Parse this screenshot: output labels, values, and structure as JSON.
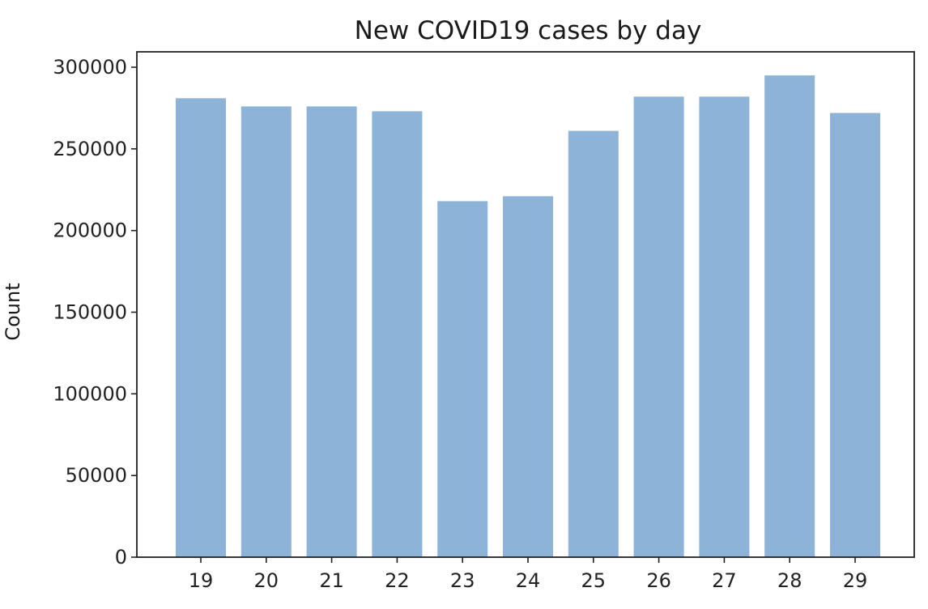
{
  "chart_data": {
    "type": "bar",
    "title": "New COVID19 cases by day",
    "xlabel": "",
    "ylabel": "Count",
    "categories": [
      "19",
      "20",
      "21",
      "22",
      "23",
      "24",
      "25",
      "26",
      "27",
      "28",
      "29"
    ],
    "values": [
      281000,
      276000,
      276000,
      273000,
      218000,
      221000,
      261000,
      282000,
      282000,
      295000,
      272000
    ],
    "ylim": [
      0,
      300000
    ],
    "yticks": [
      0,
      50000,
      100000,
      150000,
      200000,
      250000,
      300000
    ],
    "ytick_labels": [
      "0",
      "50000",
      "100000",
      "150000",
      "200000",
      "250000",
      "300000"
    ],
    "bar_color": "#8db4d8",
    "grid": false
  }
}
